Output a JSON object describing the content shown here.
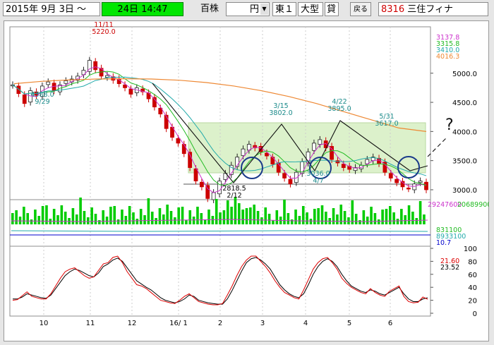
{
  "toolbar": {
    "start_date": "2015年  9月  3日 〜",
    "end_date": "24日 14:47",
    "volume_unit": "百株",
    "price_unit": "円",
    "market": "東１",
    "size_class": "大型",
    "credit": "貸",
    "back_label": "戻る",
    "code": "8316",
    "company": "三住フィナ"
  },
  "chart_data": [
    {
      "type": "candlestick",
      "panel": "price",
      "y_ticks": [
        "5000.0",
        "4500.0",
        "4000.0",
        "3500.0",
        "3000.0"
      ],
      "ylim": [
        2600,
        5600
      ],
      "x_ticks": [
        "10",
        "11",
        "12",
        "16/ 1",
        "2",
        "3",
        "4",
        "5",
        "6"
      ],
      "legend_values": [
        {
          "value": "3137.8",
          "color": "#cc33cc"
        },
        {
          "value": "3315.8",
          "color": "#22bb22"
        },
        {
          "value": "3410.0",
          "color": "#22aaaa"
        },
        {
          "value": "4016.3",
          "color": "#ee8833"
        }
      ],
      "annotations": [
        {
          "date": "11/11",
          "price": "5220.0"
        },
        {
          "date": "9/29",
          "price": "4388.0"
        },
        {
          "date": "2/12",
          "price": "2818.5"
        },
        {
          "date": "3/15",
          "price": "3802.0"
        },
        {
          "date": "4/7",
          "price": "3036.0"
        },
        {
          "date": "4/22",
          "price": "3895.0"
        },
        {
          "date": "5/31",
          "price": "3617.0"
        }
      ],
      "question_mark": "?",
      "support_level": 2880,
      "box_range": [
        3000,
        3850
      ],
      "ohlc_sampled": [
        4800,
        4650,
        4480,
        4700,
        4620,
        4780,
        4850,
        4700,
        4800,
        4870,
        4900,
        4950,
        5050,
        5220,
        5060,
        4950,
        4960,
        4880,
        4820,
        4750,
        4640,
        4750,
        4680,
        4560,
        4420,
        4300,
        4050,
        3900,
        3800,
        3620,
        3380,
        3150,
        3050,
        2850,
        2950,
        3150,
        3280,
        3420,
        3560,
        3700,
        3780,
        3720,
        3650,
        3580,
        3440,
        3300,
        3200,
        3100,
        3300,
        3480,
        3650,
        3800,
        3860,
        3720,
        3520,
        3460,
        3380,
        3350,
        3380,
        3420,
        3520,
        3560,
        3450,
        3300,
        3200,
        3120,
        3050,
        3020,
        3100,
        3150,
        3000
      ]
    },
    {
      "type": "bar",
      "panel": "volume",
      "legend_values": [
        {
          "value": "29247600",
          "color": "#cc33cc"
        },
        {
          "value": "20689900",
          "color": "#22bb22"
        },
        {
          "value": "831100",
          "color": "#22bb22"
        },
        {
          "value": "8933100",
          "color": "#22aaaa"
        },
        {
          "value": "10.7",
          "color": "#0000cc"
        }
      ]
    },
    {
      "type": "line",
      "panel": "stochastic",
      "y_ticks": [
        "100",
        "80",
        "60",
        "40",
        "20",
        "0"
      ],
      "ylim": [
        0,
        100
      ],
      "legend_values": [
        {
          "value": "21.60",
          "color": "#dd0000"
        },
        {
          "value": "23.52",
          "color": "#000000"
        }
      ],
      "series": [
        {
          "color": "#000000",
          "values": [
            22,
            22,
            25,
            30,
            28,
            26,
            24,
            23,
            28,
            38,
            48,
            58,
            64,
            68,
            66,
            62,
            58,
            56,
            62,
            72,
            76,
            82,
            85,
            80,
            70,
            60,
            50,
            45,
            40,
            36,
            30,
            24,
            20,
            18,
            16,
            18,
            22,
            28,
            26,
            20,
            18,
            16,
            15,
            14,
            14,
            22,
            35,
            50,
            65,
            78,
            84,
            86,
            82,
            76,
            68,
            56,
            44,
            36,
            30,
            26,
            24,
            30,
            44,
            60,
            72,
            80,
            84,
            80,
            72,
            60,
            50,
            42,
            38,
            34,
            32,
            36,
            34,
            30,
            28,
            32,
            36,
            40,
            30,
            22,
            18,
            18,
            22,
            24
          ]
        },
        {
          "color": "#dd0000",
          "values": [
            20,
            21,
            27,
            33,
            26,
            24,
            22,
            22,
            30,
            42,
            54,
            64,
            68,
            70,
            64,
            58,
            54,
            56,
            66,
            76,
            78,
            86,
            88,
            78,
            64,
            54,
            44,
            42,
            38,
            32,
            26,
            20,
            18,
            16,
            15,
            20,
            26,
            30,
            24,
            18,
            16,
            14,
            13,
            13,
            15,
            28,
            42,
            58,
            72,
            82,
            88,
            88,
            80,
            72,
            62,
            50,
            40,
            32,
            28,
            24,
            22,
            36,
            52,
            68,
            78,
            84,
            86,
            78,
            68,
            54,
            46,
            40,
            36,
            32,
            30,
            38,
            32,
            28,
            26,
            34,
            38,
            42,
            26,
            18,
            16,
            17,
            25,
            21.6
          ]
        }
      ]
    }
  ]
}
